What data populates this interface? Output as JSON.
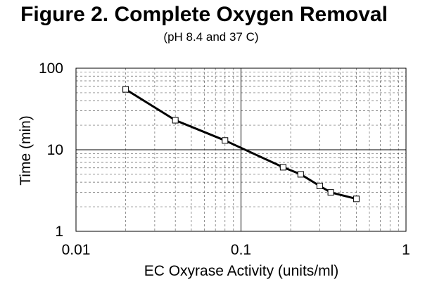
{
  "chart_data": {
    "type": "line",
    "title": "Figure 2.  Complete Oxygen Removal",
    "subtitle": "(pH 8.4 and 37 C)",
    "xlabel": "EC Oxyrase Activity (units/ml)",
    "ylabel": "Time (min)",
    "xscale": "log",
    "yscale": "log",
    "xlim": [
      0.01,
      1
    ],
    "ylim": [
      1,
      100
    ],
    "x_ticks": [
      "0.01",
      "0.1",
      "1"
    ],
    "y_ticks": [
      "1",
      "10",
      "100"
    ],
    "grid": "major solid, minor dashed",
    "legend": "none",
    "series": [
      {
        "x": [
          0.02,
          0.04,
          0.08,
          0.18,
          0.23,
          0.3,
          0.35,
          0.5
        ],
        "y": [
          55,
          23,
          13,
          6.1,
          5.0,
          3.6,
          3.0,
          2.5
        ]
      }
    ],
    "colors": {
      "line": "#000000",
      "marker_fill": "#ffffff",
      "grid": "#000000"
    }
  }
}
